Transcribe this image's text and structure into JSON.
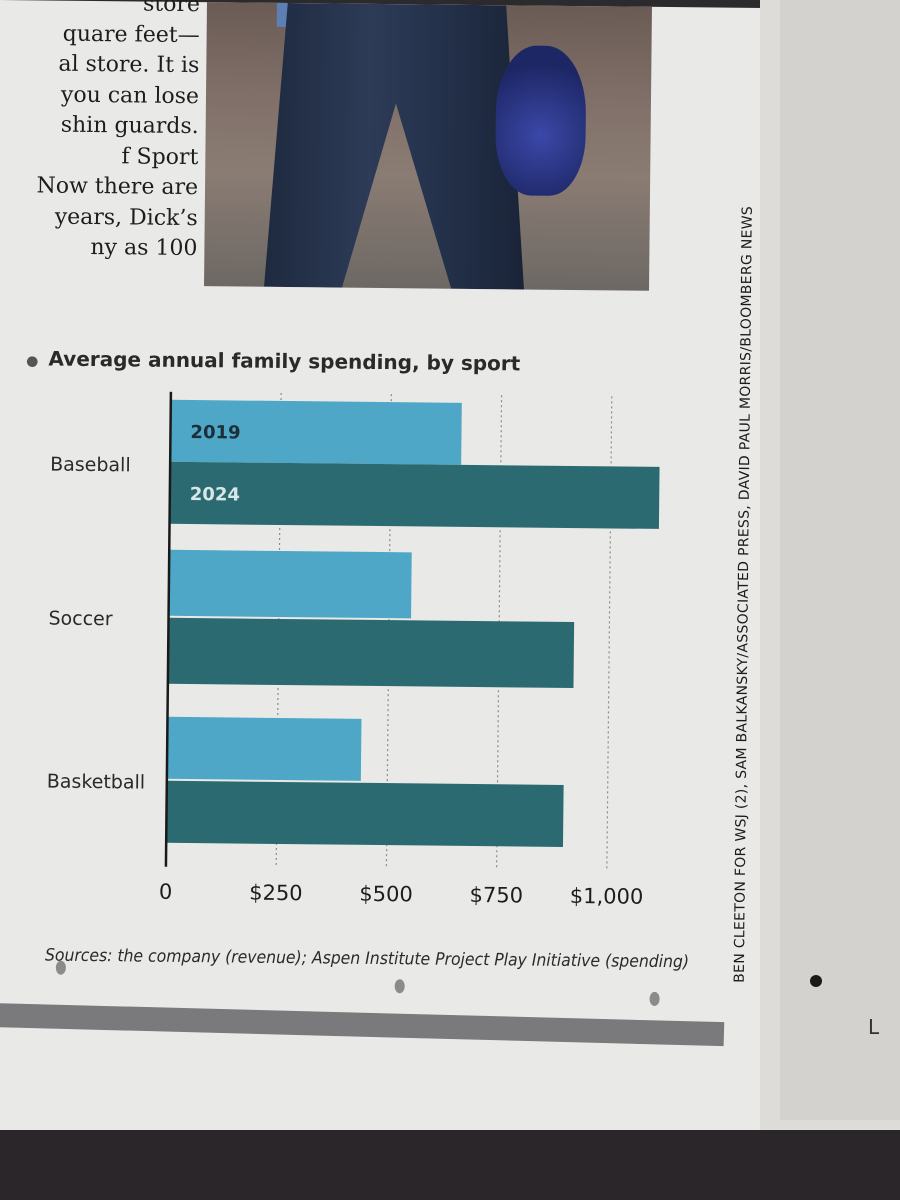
{
  "article_snippet": {
    "lines": [
      "store",
      "quare feet—",
      "al store. It is",
      "you can lose",
      "shin guards.",
      "f Sport",
      "Now there are",
      "years, Dick’s",
      "ny as 100"
    ]
  },
  "photo": {
    "subject": "person-carrying-sports-gear"
  },
  "photo_credit": "BEN CLEETON FOR WSJ (2), SAM BALKANSKY/ASSOCIATED PRESS, DAVID PAUL MORRIS/BLOOMBERG NEWS",
  "chart_data": {
    "type": "bar",
    "orientation": "horizontal",
    "title": "Average annual family spending, by sport",
    "categories": [
      "Baseball",
      "Soccer",
      "Basketball"
    ],
    "series": [
      {
        "name": "2019",
        "values": [
          660,
          550,
          440
        ],
        "color": "#4ea7c6"
      },
      {
        "name": "2024",
        "values": [
          1110,
          920,
          900
        ],
        "color": "#2a6a70"
      }
    ],
    "xlim": [
      0,
      1100
    ],
    "xticks": [
      {
        "value": 0,
        "label": "0"
      },
      {
        "value": 250,
        "label": "$250"
      },
      {
        "value": 500,
        "label": "$500"
      },
      {
        "value": 750,
        "label": "$750"
      },
      {
        "value": 1000,
        "label": "$1,000"
      }
    ],
    "grid": "vertical-dotted",
    "legend": "inside-first-bars"
  },
  "sources": "Sources: the company (revenue); Aspen Institute Project Play Initiative (spending)",
  "margin_mark": "L"
}
